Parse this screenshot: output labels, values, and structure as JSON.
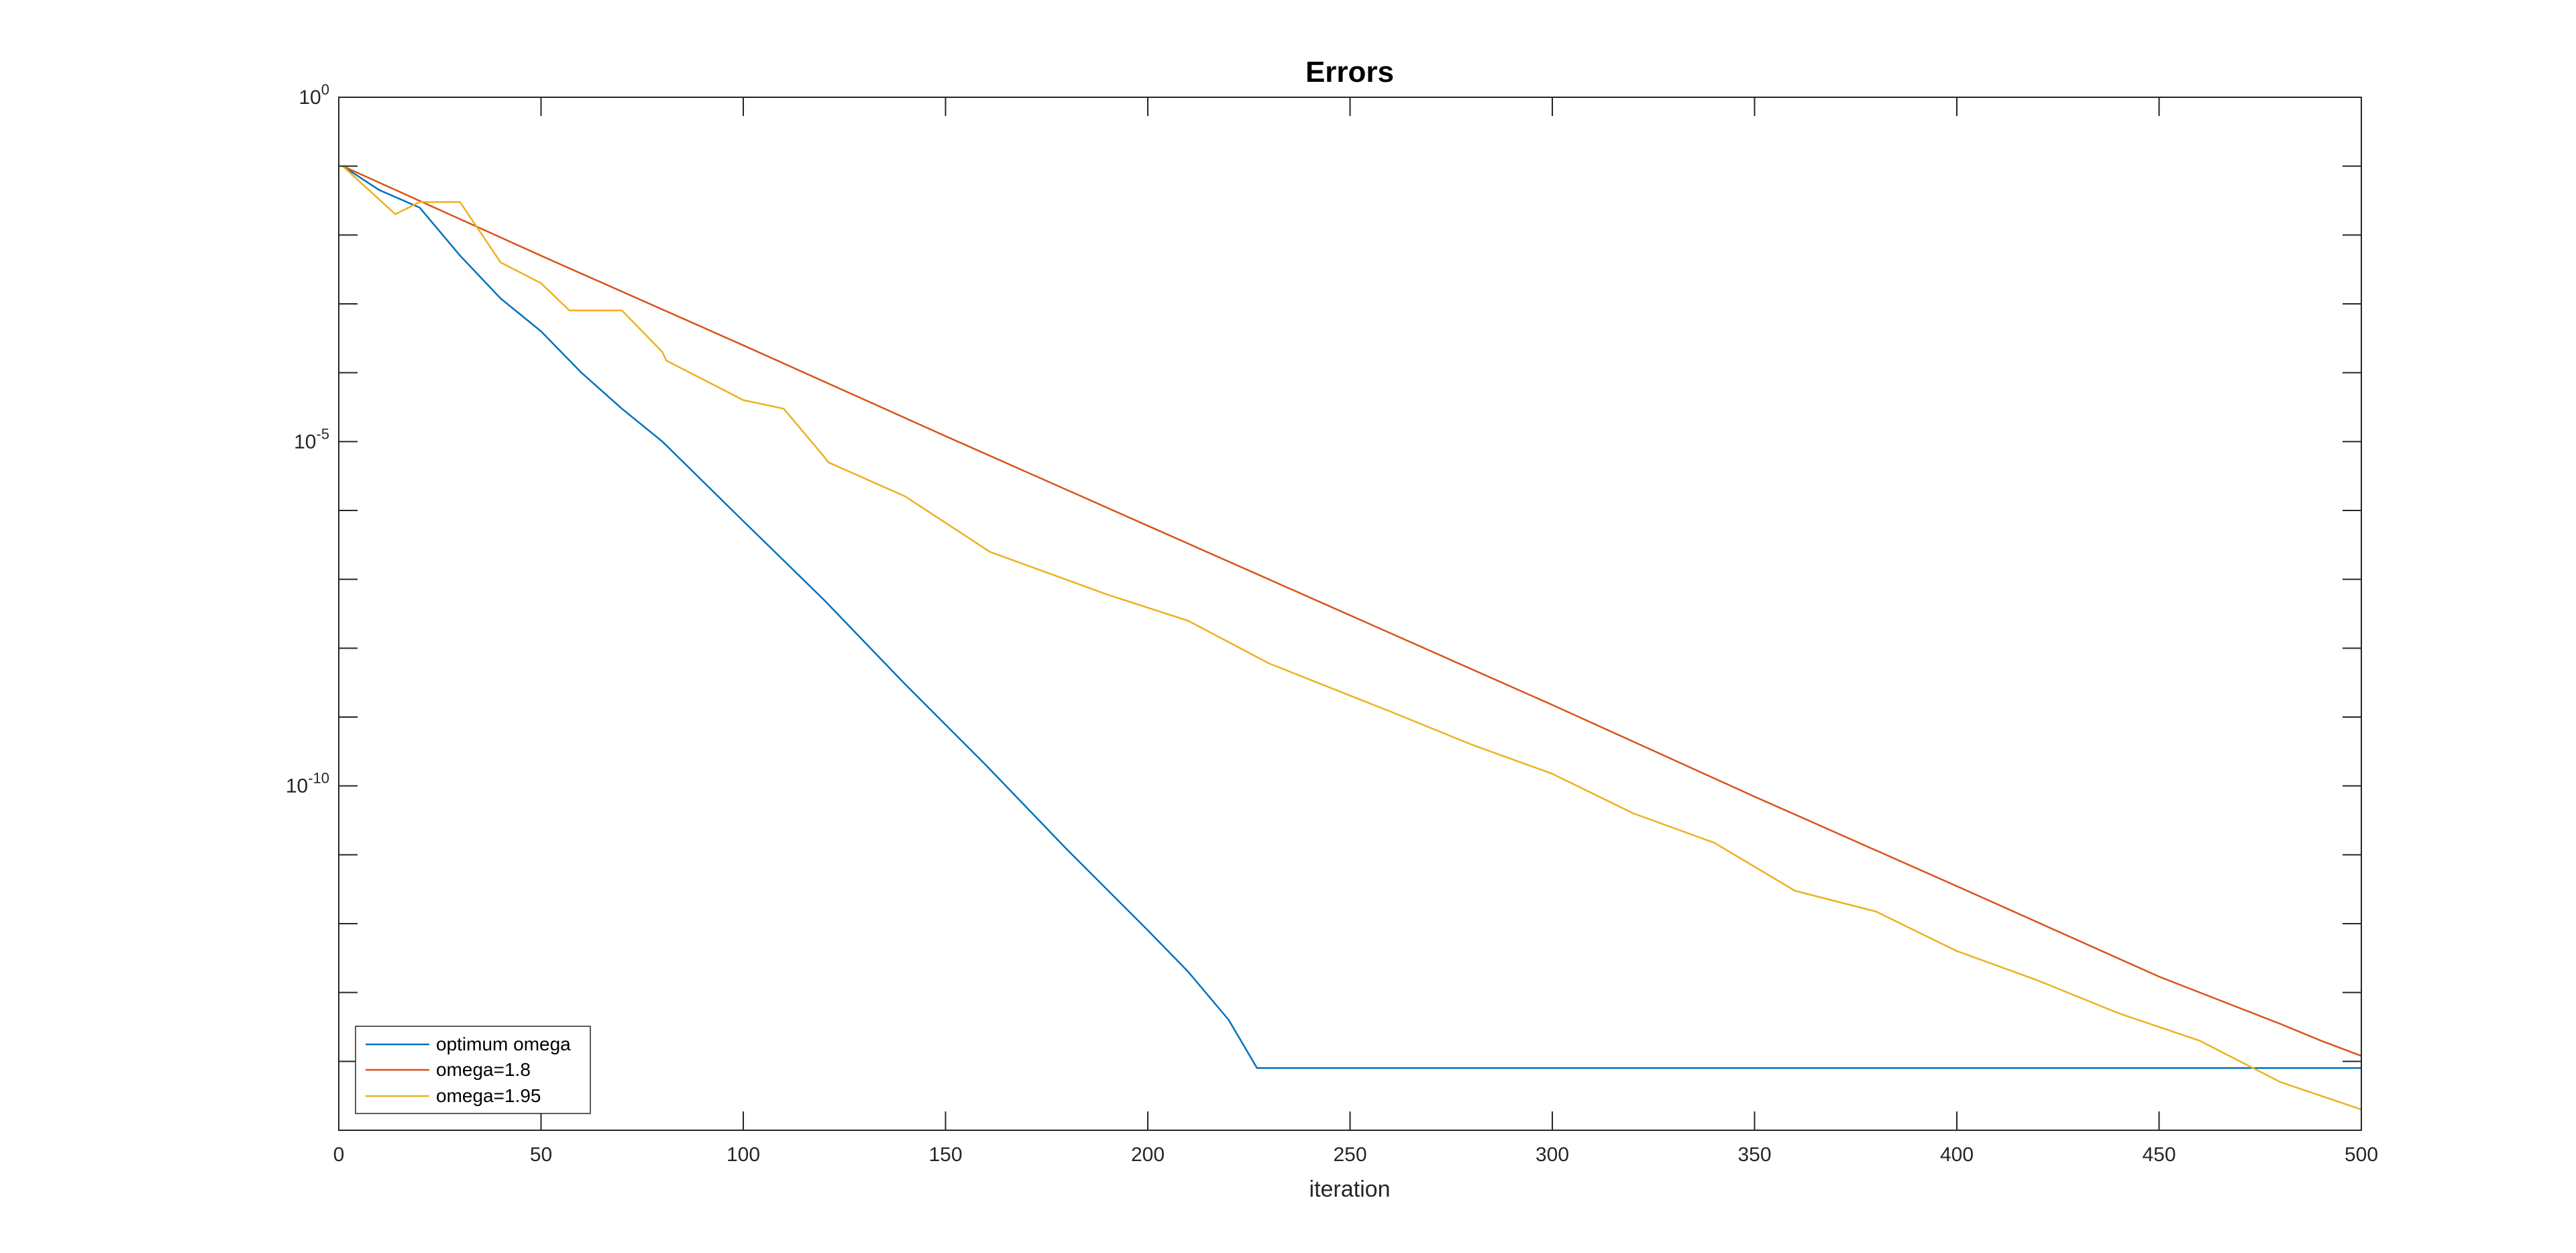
{
  "chart_data": {
    "type": "line",
    "title": "Errors",
    "xlabel": "iteration",
    "ylabel": "",
    "xlim": [
      0,
      500
    ],
    "ylim": [
      1e-15,
      1
    ],
    "yscale": "log",
    "xticks": [
      0,
      50,
      100,
      150,
      200,
      250,
      300,
      350,
      400,
      450,
      500
    ],
    "yticks": [
      {
        "base": "10",
        "exp": "0",
        "value": 1
      },
      {
        "base": "10",
        "exp": "-5",
        "value": 1e-05
      },
      {
        "base": "10",
        "exp": "-10",
        "value": 1e-10
      }
    ],
    "grid": false,
    "legend": {
      "position": "bottom-left"
    },
    "series": [
      {
        "name": "optimum omega",
        "color": "#0072BD",
        "x": [
          1,
          10,
          20,
          30,
          40,
          50,
          60,
          70,
          80,
          100,
          120,
          140,
          160,
          180,
          200,
          210,
          220,
          227,
          500
        ],
        "y": [
          0.1,
          0.045,
          0.025,
          0.005,
          0.0012,
          0.0004,
          0.0001,
          3e-05,
          1e-05,
          7e-07,
          5e-08,
          3e-09,
          2e-10,
          1.2e-11,
          8e-13,
          2e-13,
          4e-14,
          8e-15,
          8e-15
        ]
      },
      {
        "name": "omega=1.8",
        "color": "#D95319",
        "x": [
          1,
          50,
          100,
          150,
          200,
          250,
          300,
          350,
          400,
          450,
          480,
          490,
          500
        ],
        "y": [
          0.1,
          0.005,
          0.00025,
          1.2e-05,
          6e-07,
          3e-08,
          1.5e-09,
          7e-11,
          3.5e-12,
          1.7e-13,
          3.5e-14,
          2e-14,
          1.2e-14
        ]
      },
      {
        "name": "omega=1.95",
        "color": "#EDB120",
        "x": [
          1,
          14,
          20,
          30,
          38,
          40,
          50,
          57,
          70,
          80,
          81,
          100,
          110,
          120,
          121,
          140,
          161,
          190,
          210,
          230,
          260,
          280,
          300,
          320,
          340,
          360,
          380,
          400,
          420,
          440,
          460,
          480,
          500
        ],
        "y": [
          0.1,
          0.02,
          0.03,
          0.03,
          0.006,
          0.004,
          0.002,
          0.0008,
          0.0008,
          0.0002,
          0.00015,
          4e-05,
          3e-05,
          6e-06,
          5e-06,
          1.6e-06,
          2.5e-07,
          6e-08,
          2.5e-08,
          6e-09,
          1.2e-09,
          4e-10,
          1.5e-10,
          4e-11,
          1.5e-11,
          3e-12,
          1.5e-12,
          4e-13,
          1.5e-13,
          5e-14,
          2e-14,
          5e-15,
          2e-15
        ]
      }
    ]
  }
}
